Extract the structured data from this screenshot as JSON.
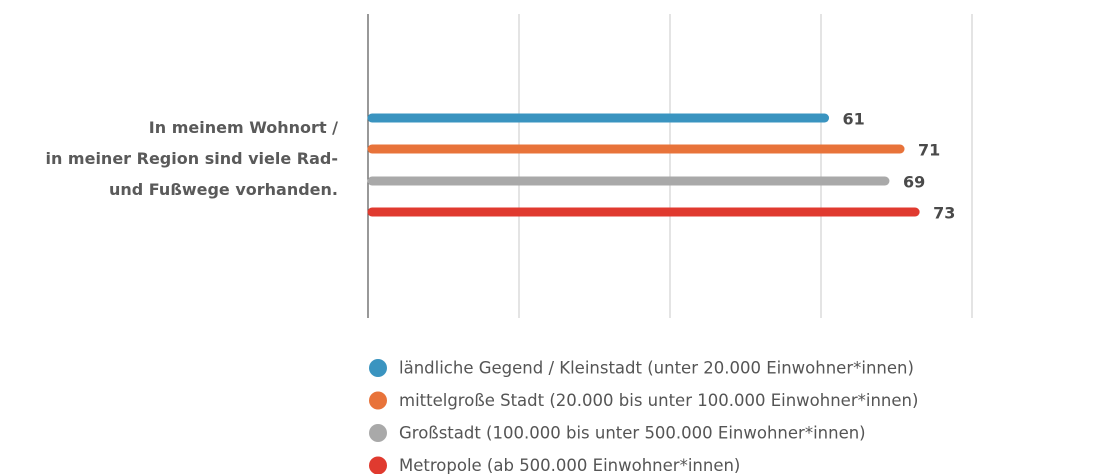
{
  "chart_data": {
    "type": "bar",
    "orientation": "horizontal",
    "categories": [
      "In meinem Wohnort /\nin meiner Region sind viele Rad-\nund Fußwege vorhanden."
    ],
    "series": [
      {
        "name": "ländliche Gegend / Kleinstadt (unter 20.000 Einwohner*innen)",
        "color": "#3a94c0",
        "values": [
          61
        ]
      },
      {
        "name": "mittelgroße Stadt (20.000 bis unter 100.000 Einwohner*innen)",
        "color": "#e8733a",
        "values": [
          71
        ]
      },
      {
        "name": "Großstadt (100.000 bis unter 500.000 Einwohner*innen)",
        "color": "#a9a9a9",
        "values": [
          69
        ]
      },
      {
        "name": "Metropole (ab 500.000 Einwohner*innen)",
        "color": "#e03a2f",
        "values": [
          73
        ]
      }
    ],
    "xlim": [
      0,
      80
    ],
    "xticks": [
      0,
      20,
      40,
      60,
      80
    ],
    "grid": true,
    "legend": "bottom"
  }
}
